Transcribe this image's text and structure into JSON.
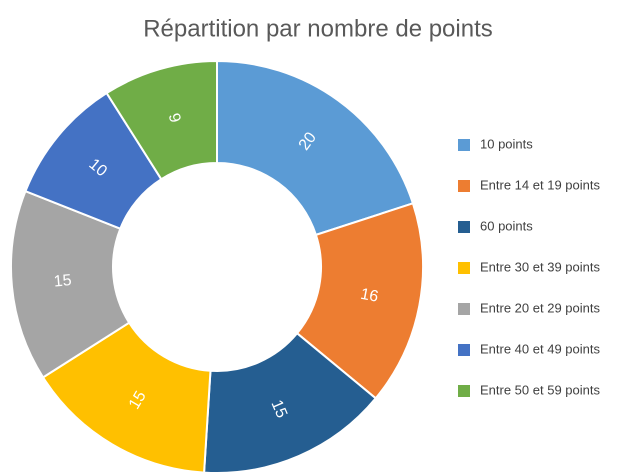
{
  "chart_data": {
    "type": "donut",
    "title": "Répartition par nombre de points",
    "series": [
      {
        "name": "10 points",
        "color": "#5b9bd5",
        "values": [
          20
        ]
      },
      {
        "name": "Entre 14 et 19 points",
        "color": "#ed7d31",
        "values": [
          16
        ]
      },
      {
        "name": "60 points",
        "color": "#255e91",
        "values": [
          15
        ]
      },
      {
        "name": "Entre 30 et 39 points",
        "color": "#ffc000",
        "values": [
          15
        ]
      },
      {
        "name": "Entre 20 et 29 points",
        "color": "#a5a5a5",
        "values": [
          15
        ]
      },
      {
        "name": "Entre 40 et 49 points",
        "color": "#4472c4",
        "values": [
          10
        ]
      },
      {
        "name": "Entre 50 et 59 points",
        "color": "#70ad47",
        "values": [
          9
        ]
      }
    ],
    "legend": "right"
  }
}
